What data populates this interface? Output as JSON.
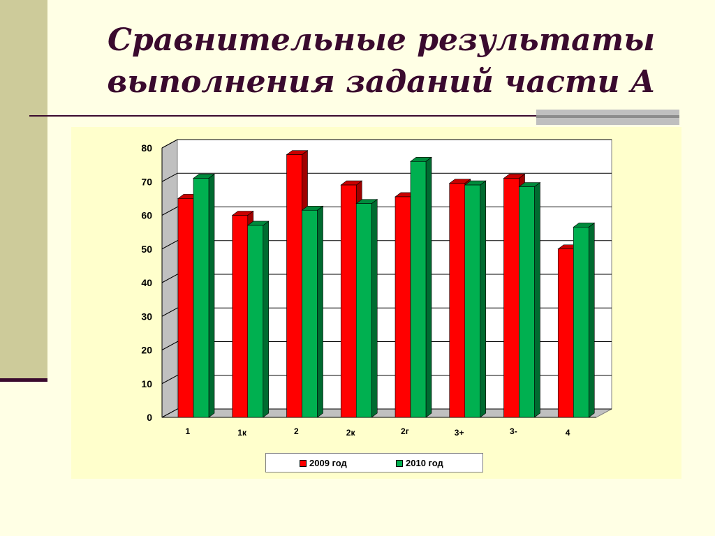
{
  "title_line1": "Сравнительные результаты",
  "title_line2": "выполнения заданий части А",
  "colors": {
    "title": "#3A0A2E",
    "series_2009": "#FF0000",
    "series_2010": "#00B050",
    "plot_bg": "#FFFFFF",
    "background": "#FFFFE5"
  },
  "chart_data": {
    "type": "bar",
    "categories": [
      "1",
      "1к",
      "2",
      "2к",
      "2г",
      "3+",
      "3-",
      "4"
    ],
    "series": [
      {
        "name": "2009 год",
        "values": [
          65,
          60,
          78,
          69,
          65.5,
          69.5,
          71,
          50
        ]
      },
      {
        "name": "2010 год",
        "values": [
          71,
          57,
          61.5,
          63.5,
          76,
          69,
          68.5,
          56.5
        ]
      }
    ],
    "yticks": [
      "0",
      "10",
      "20",
      "30",
      "40",
      "50",
      "60",
      "70",
      "80"
    ],
    "ylim": [
      0,
      80
    ],
    "grid": true,
    "legend": "bottom",
    "three_d": true
  }
}
